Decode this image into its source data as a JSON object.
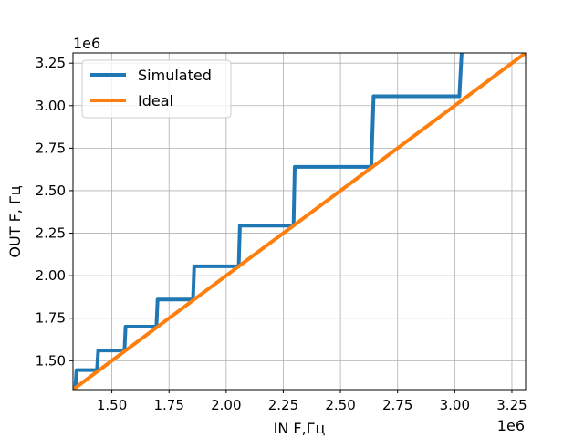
{
  "chart_data": {
    "type": "line",
    "xlabel": "IN F,Гц",
    "ylabel": "OUT F, Гц",
    "x_offset_text": "1e6",
    "y_offset_text": "1e6",
    "xlim": [
      1.33,
      3.31
    ],
    "ylim": [
      1.33,
      3.31
    ],
    "x_ticks": [
      1.5,
      1.75,
      2.0,
      2.25,
      2.5,
      2.75,
      3.0,
      3.25
    ],
    "x_tick_labels": [
      "1.50",
      "1.75",
      "2.00",
      "2.25",
      "2.50",
      "2.75",
      "3.00",
      "3.25"
    ],
    "y_ticks": [
      1.5,
      1.75,
      2.0,
      2.25,
      2.5,
      2.75,
      3.0,
      3.25
    ],
    "y_tick_labels": [
      "1.50",
      "1.75",
      "2.00",
      "2.25",
      "2.50",
      "2.75",
      "3.00",
      "3.25"
    ],
    "grid": true,
    "legend_position": "top-left",
    "series": [
      {
        "name": "Simulated",
        "color": "#1f77b4",
        "x": [
          1.33,
          1.34,
          1.345,
          1.435,
          1.44,
          1.555,
          1.56,
          1.695,
          1.7,
          1.855,
          1.86,
          2.055,
          2.06,
          2.295,
          2.3,
          2.635,
          2.645,
          3.02,
          3.03,
          3.035
        ],
        "y": [
          1.33,
          1.33,
          1.445,
          1.445,
          1.56,
          1.56,
          1.7,
          1.7,
          1.86,
          1.86,
          2.055,
          2.055,
          2.295,
          2.295,
          2.64,
          2.64,
          3.055,
          3.055,
          3.31,
          3.31
        ]
      },
      {
        "name": "Ideal",
        "color": "#ff7f0e",
        "x": [
          1.33,
          3.31
        ],
        "y": [
          1.33,
          3.31
        ]
      }
    ]
  }
}
